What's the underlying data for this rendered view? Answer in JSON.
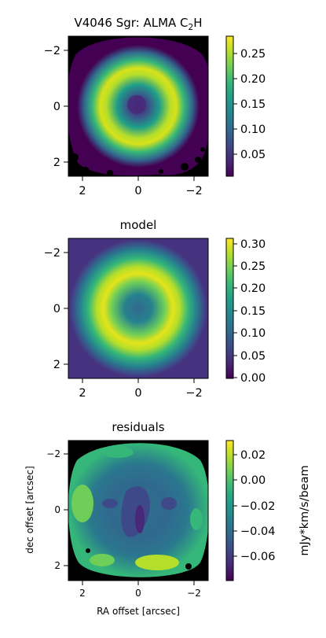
{
  "chart_data": [
    {
      "type": "heatmap",
      "title_main": "V4046 Sgr: ALMA C",
      "title_sub": "2",
      "title_end": "H",
      "x_ticks": [
        "2",
        "0",
        "−2"
      ],
      "y_ticks": [
        "−2",
        "0",
        "2"
      ],
      "colorbar_ticks": [
        "0.05",
        "0.10",
        "0.15",
        "0.20",
        "0.25"
      ],
      "colorbar_range": [
        0.0,
        0.28
      ],
      "colormap": "viridis",
      "ring": {
        "radius_arcsec": 1.0,
        "peak": 0.26,
        "inner_hole": 0.05
      }
    },
    {
      "type": "heatmap",
      "title": "model",
      "x_ticks": [
        "2",
        "0",
        "−2"
      ],
      "y_ticks": [
        "−2",
        "0",
        "2"
      ],
      "colorbar_ticks": [
        "0.00",
        "0.05",
        "0.10",
        "0.15",
        "0.20",
        "0.25",
        "0.30"
      ],
      "colorbar_range": [
        0.0,
        0.31
      ],
      "colormap": "viridis",
      "ring": {
        "radius_arcsec": 0.9,
        "peak": 0.31,
        "inner_hole": 0.1
      }
    },
    {
      "type": "heatmap",
      "title": "residuals",
      "xlabel": "RA offset [arcsec]",
      "ylabel": "dec offset [arcsec]",
      "x_ticks": [
        "2",
        "0",
        "−2"
      ],
      "y_ticks": [
        "−2",
        "0",
        "2"
      ],
      "colorbar_ticks": [
        "0.02",
        "0.00",
        "−0.02",
        "−0.04",
        "−0.06"
      ],
      "colorbar_tick_values": [
        0.02,
        0.0,
        -0.02,
        -0.04,
        -0.06
      ],
      "colorbar_range": [
        -0.075,
        0.035
      ],
      "colorbar_label": "mJy*km/s/beam",
      "colormap": "viridis"
    }
  ],
  "colors": {
    "viridis": [
      "#440154",
      "#482878",
      "#3e4989",
      "#31688e",
      "#26828e",
      "#1f9e89",
      "#35b779",
      "#6ece58",
      "#b5de2b",
      "#fde725"
    ],
    "mask": "#000000"
  }
}
